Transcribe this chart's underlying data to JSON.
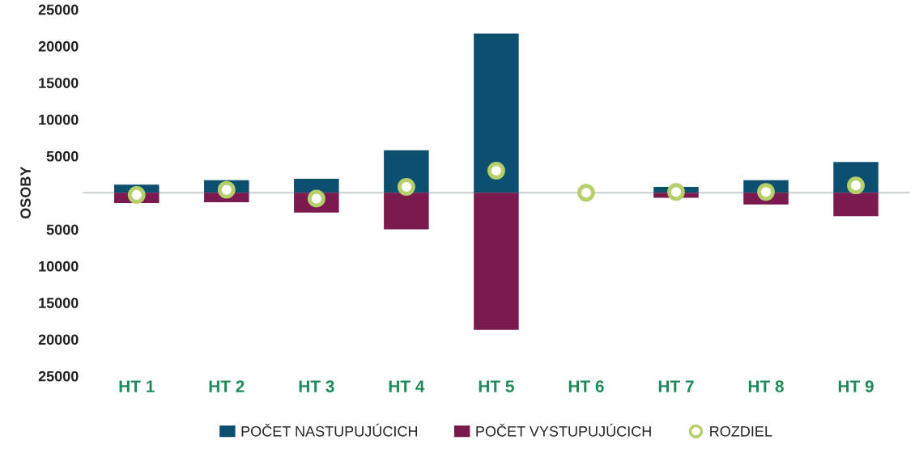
{
  "chart_data": {
    "type": "bar",
    "ylabel": "OSOBY",
    "categories": [
      "HT 1",
      "HT 2",
      "HT 3",
      "HT 4",
      "HT 5",
      "HT 6",
      "HT 7",
      "HT 8",
      "HT 9"
    ],
    "series": [
      {
        "name": "POČET NASTUPUJÚCICH",
        "color": "#0d4f6e",
        "values": [
          1100,
          1700,
          1900,
          5800,
          21700,
          null,
          800,
          1700,
          4200
        ]
      },
      {
        "name": "POČET VYSTUPUJÚCICH",
        "color": "#7a1a4e",
        "values": [
          -1400,
          -1300,
          -2700,
          -5000,
          -18700,
          null,
          -700,
          -1600,
          -3200
        ]
      },
      {
        "name": "ROZDIEL",
        "type": "scatter",
        "color": "#b5cf6b",
        "marker": "circle",
        "values": [
          -300,
          400,
          -800,
          800,
          3000,
          0,
          100,
          100,
          1000
        ]
      }
    ],
    "ylim": [
      -25000,
      25000
    ],
    "yticks": [
      25000,
      20000,
      15000,
      10000,
      5000,
      {
        "value": 0,
        "label": null
      },
      {
        "value": -5000,
        "label": "5000"
      },
      {
        "value": -10000,
        "label": "10000"
      },
      {
        "value": -15000,
        "label": "15000"
      },
      {
        "value": -20000,
        "label": "20000"
      },
      {
        "value": -25000,
        "label": "25000"
      }
    ],
    "ref_lines": [
      {
        "axis": "y",
        "value": 0,
        "color": "#c8d0d0"
      }
    ],
    "stacked": true,
    "legend": "bottom",
    "grid": false
  }
}
